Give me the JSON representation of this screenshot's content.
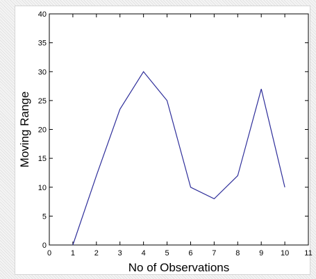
{
  "chart_data": {
    "type": "line",
    "title": "",
    "xlabel": "No of Observations",
    "ylabel": "Moving Range",
    "xlim": [
      0,
      11
    ],
    "ylim": [
      0,
      40
    ],
    "xticks": [
      0,
      1,
      2,
      3,
      4,
      5,
      6,
      7,
      8,
      9,
      10,
      11
    ],
    "yticks": [
      0,
      5,
      10,
      15,
      20,
      25,
      30,
      35,
      40
    ],
    "grid": false,
    "line_color": "#2e2e9a",
    "series": [
      {
        "x": [
          1,
          2,
          3,
          4,
          5,
          6,
          7,
          8,
          9,
          10
        ],
        "values": [
          0,
          12,
          23.5,
          30,
          25,
          10,
          8,
          12,
          27,
          10
        ]
      }
    ]
  }
}
